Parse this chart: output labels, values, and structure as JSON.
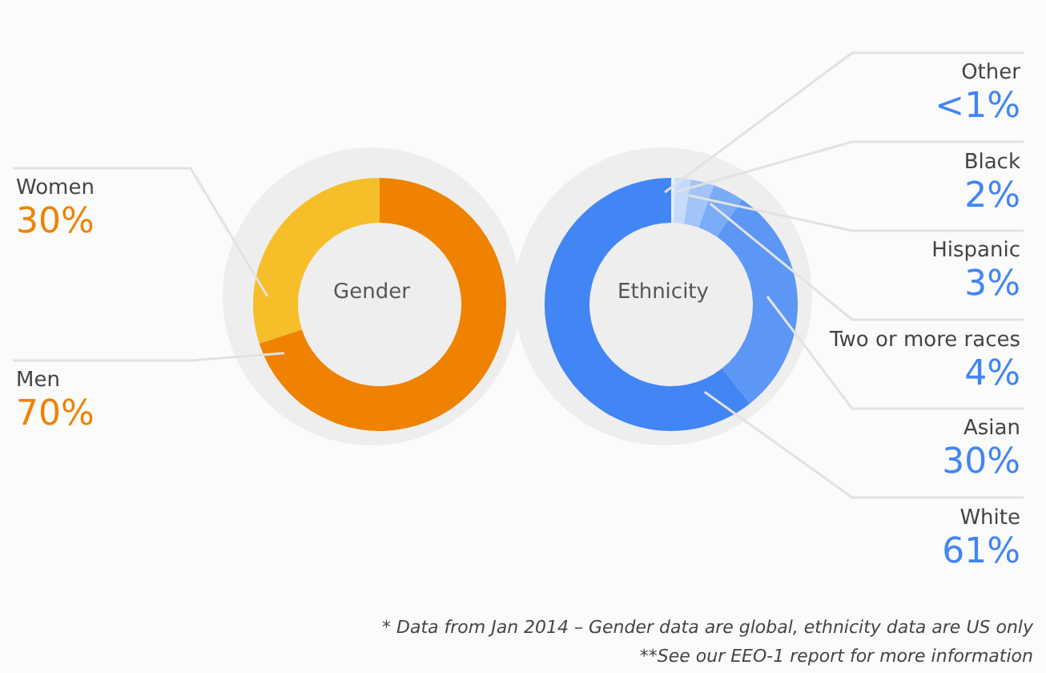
{
  "chart_data": [
    {
      "type": "donut",
      "title": "Gender",
      "categories": [
        "Women",
        "Men"
      ],
      "values": [
        30,
        70
      ],
      "colors": [
        "#f6be28",
        "#ef8200"
      ],
      "value_labels": [
        "30%",
        "70%"
      ]
    },
    {
      "type": "donut",
      "title": "Ethnicity",
      "categories": [
        "Other",
        "Black",
        "Hispanic",
        "Two or more races",
        "Asian",
        "White"
      ],
      "values": [
        0.5,
        2,
        3,
        4,
        30,
        61
      ],
      "colors": [
        "#e3edfd",
        "#c6dafc",
        "#a3c4f9",
        "#7aabf7",
        "#5c97f5",
        "#4285f4"
      ],
      "value_labels": [
        "<1%",
        "2%",
        "3%",
        "4%",
        "30%",
        "61%"
      ],
      "annotations": [
        "* Data from Jan 2014 – Gender data are global, ethnicity data are US only",
        "**See our EEO-1 report for more information"
      ]
    }
  ]
}
